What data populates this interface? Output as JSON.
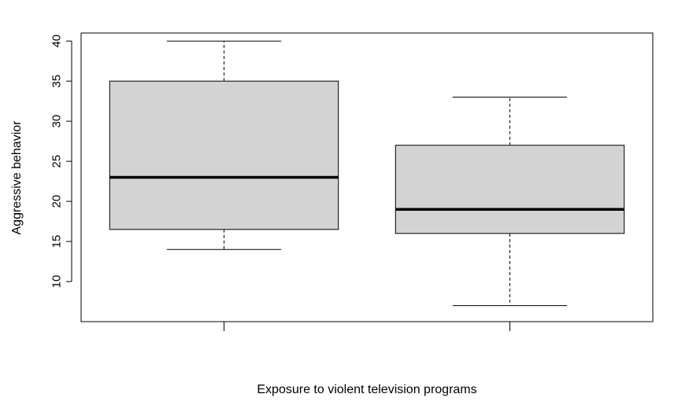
{
  "chart_data": {
    "type": "boxplot",
    "title": "",
    "xlabel": "Exposure to violent television programs",
    "ylabel": "Aggressive behavior",
    "ylim": [
      5,
      41
    ],
    "yticks": [
      10,
      15,
      20,
      25,
      30,
      35,
      40
    ],
    "grid": false,
    "box_fill": "#d3d3d3",
    "line_color": "#000000",
    "series": [
      {
        "whisker_low": 14,
        "q1": 16.5,
        "median": 23,
        "q3": 35,
        "whisker_high": 40
      },
      {
        "whisker_low": 7,
        "q1": 16,
        "median": 19,
        "q3": 27,
        "whisker_high": 33
      }
    ]
  }
}
